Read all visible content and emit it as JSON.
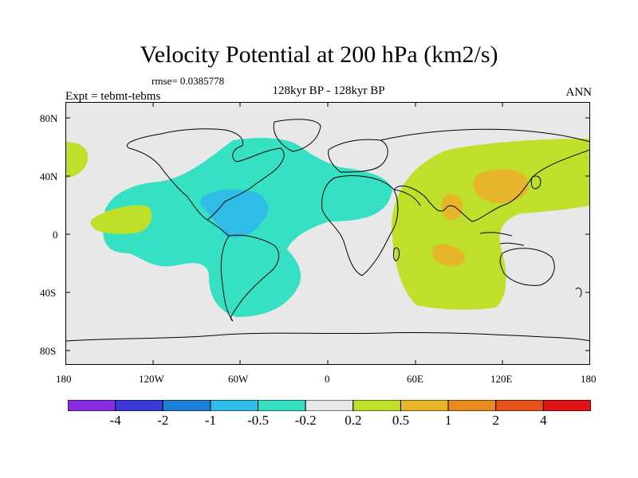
{
  "title": "Velocity Potential at 200 hPa (km2/s)",
  "rmse_label": "rmse= 0.0385778",
  "expt_label": "Expt = tebmt-tebms",
  "period_label": "128kyr BP - 128kyr BP",
  "season_label": "ANN",
  "lat_ticks": [
    "80N",
    "40N",
    "0",
    "40S",
    "80S"
  ],
  "lon_ticks": [
    "180",
    "120W",
    "60W",
    "0",
    "60E",
    "120E",
    "180"
  ],
  "colorbar": {
    "colors": [
      "#8a2be2",
      "#3a3ad8",
      "#1e7fd8",
      "#2fbde8",
      "#36e0c3",
      "#e8e8e8",
      "#bfe02a",
      "#e7b52a",
      "#e88a1d",
      "#e5521c",
      "#e01414"
    ],
    "labels": [
      "-4",
      "-2",
      "-1",
      "-0.5",
      "-0.2",
      "0.2",
      "0.5",
      "1",
      "2",
      "4"
    ]
  },
  "palette": {
    "ocean": "#e8e8e8",
    "neg_weak": "#36e0c3",
    "neg_mid": "#2fbde8",
    "pos_weak": "#bfe02a",
    "pos_mid": "#e7b52a"
  }
}
